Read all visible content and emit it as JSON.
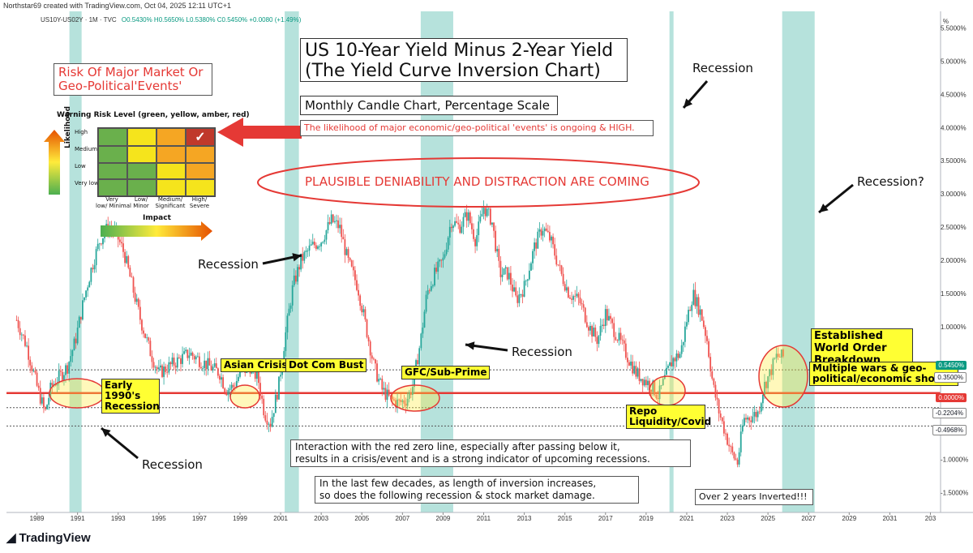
{
  "header": {
    "attribution": "Northstar69 created with TradingView.com, Oct 04, 2025 12:11 UTC+1",
    "symbol": "US10Y-US02Y · 1M · TVC",
    "ohlc": "O0.5430% H0.5650% L0.5380% C0.5450% +0.0080 (+1.49%)",
    "currency": "%"
  },
  "titles": {
    "main_line1": "US 10-Year Yield Minus 2-Year Yield",
    "main_line2": "(The Yield Curve Inversion Chart)",
    "subtitle": "Monthly Candle Chart, Percentage Scale",
    "risk_heading_line1": "Risk Of Major Market Or",
    "risk_heading_line2": "Geo-Political'Events'",
    "likelihood_note": "The likelihood of major economic/geo-political 'events' is ongoing & HIGH.",
    "ellipse_text": "PLAUSIBLE DENIABILITY AND DISTRACTION ARE COMING"
  },
  "risk_matrix": {
    "title": "Warning Risk Level (green, yellow, amber, red)",
    "y_label": "Likelihood",
    "x_label": "Impact",
    "rows": [
      "High",
      "Medium",
      "Low",
      "Very low"
    ],
    "cols": [
      "Very low/ Minimal",
      "Low/ Minor",
      "Medium/ Significant",
      "High/ Severe"
    ],
    "colors": [
      [
        "#6ab04c",
        "#f5e41c",
        "#f5a623",
        "#c0392b"
      ],
      [
        "#6ab04c",
        "#f5e41c",
        "#f5a623",
        "#f5a623"
      ],
      [
        "#6ab04c",
        "#6ab04c",
        "#f5e41c",
        "#f5a623"
      ],
      [
        "#6ab04c",
        "#6ab04c",
        "#f5e41c",
        "#f5e41c"
      ]
    ],
    "checked_cell": "High / High/ Severe"
  },
  "annotations": {
    "recession_labels": [
      "Recession",
      "Recession",
      "Recession",
      "Recession",
      "Recession?"
    ],
    "early_1990s": "Early 1990's Recession",
    "asian_crisis": "Asian Crisis",
    "dot_com": "Dot Com Bust",
    "gfc": "GFC/Sub-Prime",
    "repo": "Repo Liquidity/Covid",
    "established": "Established World Order Breakdown",
    "multiple_wars": "Multiple wars & geo-political/economic shocks",
    "interaction_line1": "Interaction with the red zero line, especially after passing below it,",
    "interaction_line2": "results in a crisis/event and is a strong indicator of upcoming recessions.",
    "decades_line1": "In the last few decades, as length of inversion increases,",
    "decades_line2": "so does the following recession & stock market damage.",
    "over2years": "Over 2 years Inverted!!!"
  },
  "price_badges": {
    "last": "0.5450%",
    "upper": "0.3500%",
    "zero": "0.0000%",
    "lower1": "-0.2204%",
    "lower2": "-0.4968%"
  },
  "branding": {
    "logo_text": "TradingView"
  },
  "chart_data": {
    "type": "candlestick",
    "title": "US 10-Year Yield Minus 2-Year Yield (The Yield Curve Inversion Chart)",
    "xlabel": "",
    "ylabel": "%",
    "x_ticks": [
      "1989",
      "1991",
      "1993",
      "1995",
      "1997",
      "1999",
      "2001",
      "2003",
      "2005",
      "2007",
      "2009",
      "2011",
      "2013",
      "2015",
      "2017",
      "2019",
      "2021",
      "2023",
      "2025",
      "2027",
      "2029",
      "2031",
      "203"
    ],
    "y_ticks": [
      "5.5000%",
      "5.0000%",
      "4.5000%",
      "4.0000%",
      "3.5000%",
      "3.0000%",
      "2.5000%",
      "2.0000%",
      "1.5000%",
      "1.0000%",
      "-1.0000%",
      "-1.5000%"
    ],
    "y_tick_values": [
      5.5,
      5.0,
      4.5,
      4.0,
      3.5,
      3.0,
      2.5,
      2.0,
      1.5,
      1.0,
      -1.0,
      -1.5
    ],
    "ylim": [
      -1.75,
      5.75
    ],
    "xlim": [
      1987.5,
      2033.5
    ],
    "horizontal_levels": [
      0.35,
      0.0,
      -0.2204,
      -0.4968
    ],
    "zero_line_color": "#e53935",
    "recession_bands": [
      [
        1990.6,
        1991.2
      ],
      [
        2001.2,
        2001.9
      ],
      [
        2007.9,
        2009.5
      ],
      [
        2020.15,
        2020.35
      ],
      [
        2025.7,
        2027.3
      ]
    ],
    "up_color": "#26a69a",
    "down_color": "#ef5350",
    "series": [
      {
        "name": "US10Y-US02Y",
        "points": [
          [
            1988.0,
            1.1
          ],
          [
            1988.5,
            0.7
          ],
          [
            1989.0,
            0.1
          ],
          [
            1989.4,
            -0.3
          ],
          [
            1989.7,
            0.1
          ],
          [
            1990.0,
            0.2
          ],
          [
            1990.5,
            0.4
          ],
          [
            1990.9,
            0.8
          ],
          [
            1991.3,
            1.4
          ],
          [
            1991.7,
            1.9
          ],
          [
            1992.1,
            2.3
          ],
          [
            1992.5,
            2.5
          ],
          [
            1992.9,
            2.4
          ],
          [
            1993.3,
            2.1
          ],
          [
            1993.7,
            1.6
          ],
          [
            1994.1,
            1.1
          ],
          [
            1994.6,
            0.6
          ],
          [
            1995.0,
            0.3
          ],
          [
            1995.5,
            0.4
          ],
          [
            1996.0,
            0.5
          ],
          [
            1996.5,
            0.6
          ],
          [
            1997.0,
            0.5
          ],
          [
            1997.5,
            0.4
          ],
          [
            1998.0,
            0.3
          ],
          [
            1998.3,
            0.05
          ],
          [
            1998.7,
            0.1
          ],
          [
            1999.0,
            0.3
          ],
          [
            1999.5,
            0.4
          ],
          [
            1999.9,
            0.2
          ],
          [
            2000.2,
            -0.3
          ],
          [
            2000.5,
            -0.45
          ],
          [
            2000.9,
            0.1
          ],
          [
            2001.2,
            0.8
          ],
          [
            2001.6,
            1.6
          ],
          [
            2002.0,
            2.0
          ],
          [
            2002.5,
            2.2
          ],
          [
            2003.0,
            2.3
          ],
          [
            2003.5,
            2.6
          ],
          [
            2003.9,
            2.5
          ],
          [
            2004.3,
            2.0
          ],
          [
            2004.8,
            1.6
          ],
          [
            2005.2,
            1.0
          ],
          [
            2005.6,
            0.4
          ],
          [
            2006.0,
            0.05
          ],
          [
            2006.4,
            -0.1
          ],
          [
            2006.8,
            -0.15
          ],
          [
            2007.2,
            -0.1
          ],
          [
            2007.5,
            0.1
          ],
          [
            2007.9,
            0.8
          ],
          [
            2008.2,
            1.5
          ],
          [
            2008.6,
            1.8
          ],
          [
            2009.0,
            2.0
          ],
          [
            2009.4,
            2.6
          ],
          [
            2009.8,
            2.5
          ],
          [
            2010.2,
            2.7
          ],
          [
            2010.6,
            2.3
          ],
          [
            2011.0,
            2.8
          ],
          [
            2011.4,
            2.6
          ],
          [
            2011.8,
            1.8
          ],
          [
            2012.2,
            1.8
          ],
          [
            2012.6,
            1.4
          ],
          [
            2013.0,
            1.6
          ],
          [
            2013.5,
            2.2
          ],
          [
            2013.9,
            2.5
          ],
          [
            2014.3,
            2.3
          ],
          [
            2014.8,
            1.8
          ],
          [
            2015.2,
            1.5
          ],
          [
            2015.7,
            1.4
          ],
          [
            2016.2,
            1.0
          ],
          [
            2016.6,
            0.8
          ],
          [
            2017.0,
            1.2
          ],
          [
            2017.5,
            0.9
          ],
          [
            2018.0,
            0.6
          ],
          [
            2018.5,
            0.3
          ],
          [
            2018.9,
            0.2
          ],
          [
            2019.3,
            0.1
          ],
          [
            2019.6,
            -0.05
          ],
          [
            2019.9,
            0.2
          ],
          [
            2020.3,
            0.5
          ],
          [
            2020.7,
            0.6
          ],
          [
            2021.0,
            1.1
          ],
          [
            2021.3,
            1.5
          ],
          [
            2021.7,
            1.2
          ],
          [
            2022.0,
            0.8
          ],
          [
            2022.3,
            0.1
          ],
          [
            2022.6,
            -0.3
          ],
          [
            2022.9,
            -0.6
          ],
          [
            2023.2,
            -0.9
          ],
          [
            2023.5,
            -1.05
          ],
          [
            2023.8,
            -0.4
          ],
          [
            2024.2,
            -0.35
          ],
          [
            2024.5,
            -0.3
          ],
          [
            2024.8,
            0.1
          ],
          [
            2025.1,
            0.3
          ],
          [
            2025.4,
            0.55
          ],
          [
            2025.75,
            0.545
          ]
        ]
      }
    ]
  }
}
